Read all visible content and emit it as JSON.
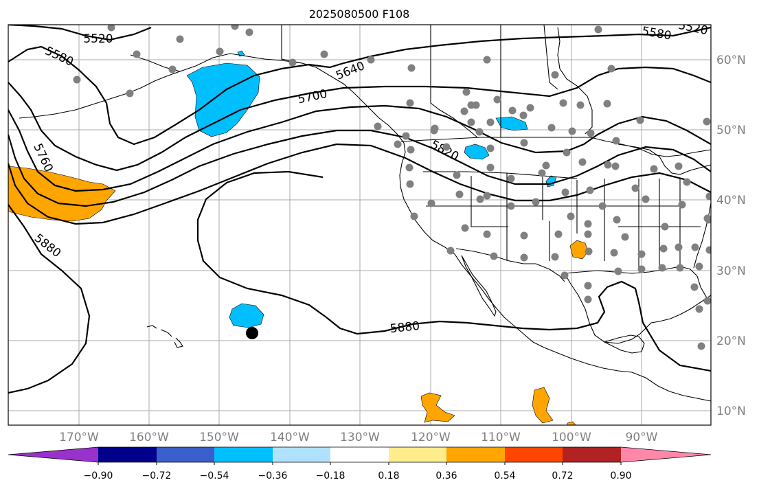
{
  "title": "2025080500 F108",
  "longitude_labels": [
    "170°W",
    "160°W",
    "150°W",
    "140°W",
    "130°W",
    "120°W",
    "110°W",
    "100°W",
    "90°W"
  ],
  "latitude_labels": [
    "60°N",
    "50°N",
    "40°N",
    "30°N",
    "20°N",
    "10°N"
  ],
  "contour_labels": [
    "5520",
    "5580",
    "5640",
    "5700",
    "5760",
    "5820",
    "5880",
    "5880",
    "5580",
    "5520"
  ],
  "colorbar": {
    "tick_labels": [
      "−0.90",
      "−0.72",
      "−0.54",
      "−0.36",
      "−0.18",
      "0.18",
      "0.36",
      "0.54",
      "0.72",
      "0.90"
    ],
    "colors": [
      "#9932cc",
      "#00008b",
      "#3a5fcd",
      "#00bfff",
      "#b0e2ff",
      "#ffffff",
      "#ffec8b",
      "#ffa500",
      "#ff4500",
      "#b22222",
      "#ff88aa"
    ]
  },
  "anomaly_fill_colors": {
    "negative": "#00bfff",
    "positive": "#ffa500"
  },
  "station_marker_color": "#808080",
  "storm_marker_color": "#000000"
}
